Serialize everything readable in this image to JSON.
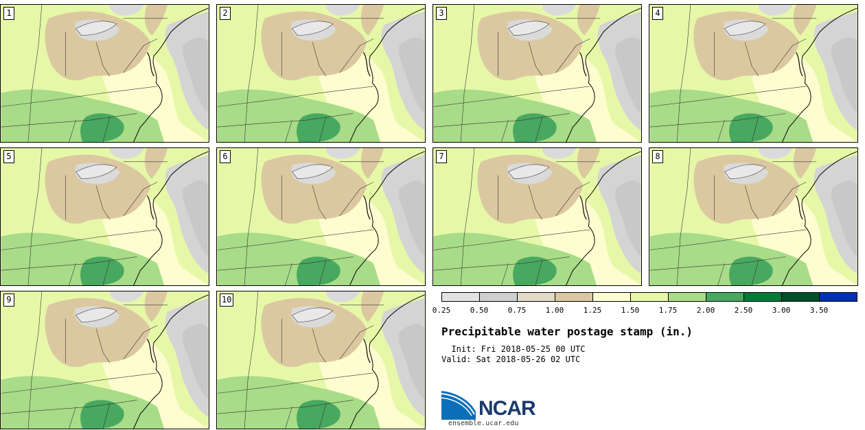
{
  "panels": [
    {
      "label": "1"
    },
    {
      "label": "2"
    },
    {
      "label": "3"
    },
    {
      "label": "4"
    },
    {
      "label": "5"
    },
    {
      "label": "6"
    },
    {
      "label": "7"
    },
    {
      "label": "8"
    },
    {
      "label": "9"
    },
    {
      "label": "10"
    }
  ],
  "colorbar": {
    "ticks": [
      "0.25",
      "0.50",
      "0.75",
      "1.00",
      "1.25",
      "1.50",
      "1.75",
      "2.00",
      "2.50",
      "3.00",
      "3.50"
    ],
    "colors": [
      "#e2e2e2",
      "#cfcfcf",
      "#e0dcc8",
      "#dbc8a0",
      "#fdfdd0",
      "#e6f8a8",
      "#a8dc88",
      "#48a860",
      "#007a36",
      "#00502a",
      "#0030b0"
    ]
  },
  "title": "Precipitable water postage stamp (in.)",
  "init_line": "  Init: Fri 2018-05-25 00 UTC",
  "valid_line": "Valid: Sat 2018-05-26 02 UTC",
  "logo": {
    "name": "NCAR",
    "url": "ensemble.ucar.edu"
  },
  "palette": {
    "ocean": "#c8c8c8",
    "lake": "#c8c8c8",
    "dry_tan": "#dbc8a0",
    "pale_yellow": "#fdfdd0",
    "light_green": "#e6f8a8",
    "mid_green": "#a8dc88",
    "dark_green": "#48a860"
  }
}
